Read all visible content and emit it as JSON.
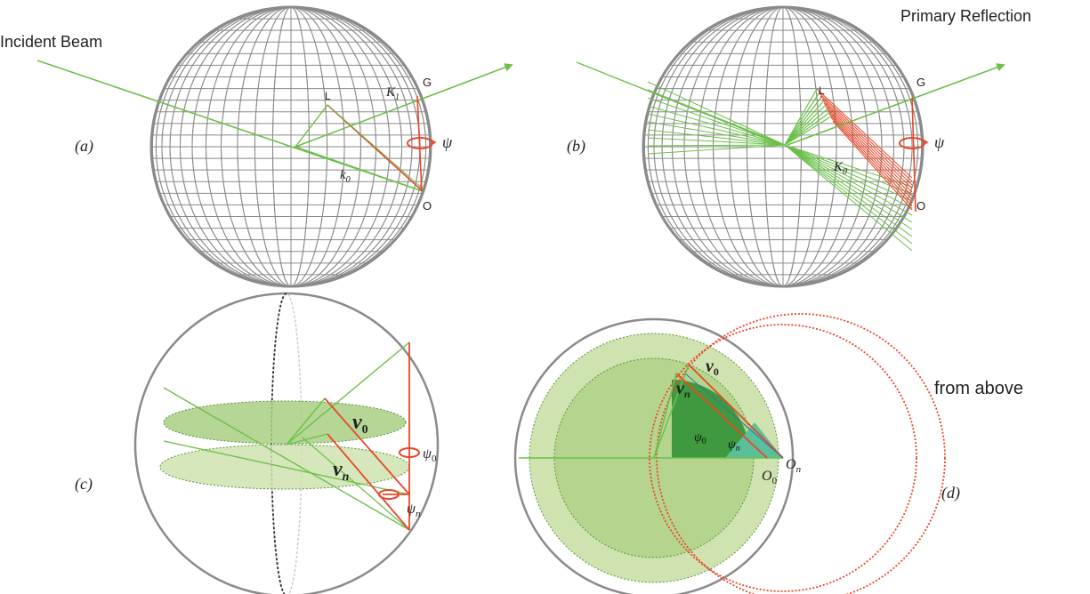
{
  "panels": {
    "a": {
      "tag": "(a)",
      "incident_label": "Incident Beam",
      "g": "G",
      "o": "O",
      "l": "L",
      "k1": "K",
      "k1_sub": "1",
      "k0": "k",
      "k0_sub": "0",
      "psi": "ψ"
    },
    "b": {
      "tag": "(b)",
      "reflection_label": "Primary Reflection",
      "g": "G",
      "o": "O",
      "l": "L",
      "k0": "K",
      "k0_sub": "0",
      "psi": "ψ"
    },
    "c": {
      "tag": "(c)",
      "v0": "v",
      "v0_sub": "0",
      "vn": "v",
      "vn_sub": "n",
      "psi0": "ψ",
      "psi0_sub": "0",
      "psin": "ψ",
      "psin_sub": "n"
    },
    "d": {
      "tag": "(d)",
      "from_above": "from above",
      "v0": "v",
      "v0_sub": "0",
      "vn": "v",
      "vn_sub": "n",
      "psi0": "ψ",
      "psi0_sub": "0",
      "psin": "ψ",
      "psin_sub": "n",
      "o0": "O",
      "o0_sub": "0",
      "on": "O",
      "on_sub": "n"
    }
  },
  "colors": {
    "green": "#6cc04a",
    "red": "#e8472b",
    "grid": "#8a8a8a",
    "disc_light": "#cfe3b0",
    "disc_mid": "#b5d58e",
    "disc_dark": "#3f9a3f",
    "teal": "#5bbf9a"
  }
}
